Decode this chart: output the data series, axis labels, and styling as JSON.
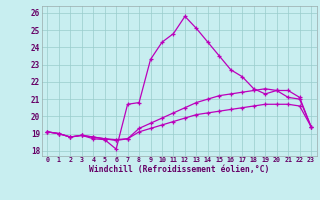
{
  "xlabel": "Windchill (Refroidissement éolien,°C)",
  "background_color": "#c8eef0",
  "grid_color": "#99cccc",
  "line_color": "#bb00bb",
  "x_hours": [
    0,
    1,
    2,
    3,
    4,
    5,
    6,
    7,
    8,
    9,
    10,
    11,
    12,
    13,
    14,
    15,
    16,
    17,
    18,
    19,
    20,
    21,
    22,
    23
  ],
  "series_main": [
    19.1,
    19.0,
    18.8,
    18.9,
    18.7,
    18.65,
    18.1,
    20.7,
    20.8,
    23.3,
    24.3,
    24.8,
    25.8,
    25.1,
    24.3,
    23.5,
    22.7,
    22.3,
    21.6,
    21.3,
    21.5,
    21.1,
    21.0,
    19.4
  ],
  "series_mid": [
    19.1,
    19.0,
    18.8,
    18.9,
    18.8,
    18.7,
    18.6,
    18.7,
    19.3,
    19.6,
    19.9,
    20.2,
    20.5,
    20.8,
    21.0,
    21.2,
    21.3,
    21.4,
    21.5,
    21.6,
    21.5,
    21.5,
    21.1,
    19.4
  ],
  "series_low": [
    19.1,
    19.0,
    18.8,
    18.9,
    18.8,
    18.7,
    18.65,
    18.7,
    19.1,
    19.3,
    19.5,
    19.7,
    19.9,
    20.1,
    20.2,
    20.3,
    20.4,
    20.5,
    20.6,
    20.7,
    20.7,
    20.7,
    20.6,
    19.4
  ],
  "ylim": [
    17.7,
    26.4
  ],
  "yticks": [
    18,
    19,
    20,
    21,
    22,
    23,
    24,
    25,
    26
  ],
  "xlim": [
    -0.5,
    23.5
  ]
}
